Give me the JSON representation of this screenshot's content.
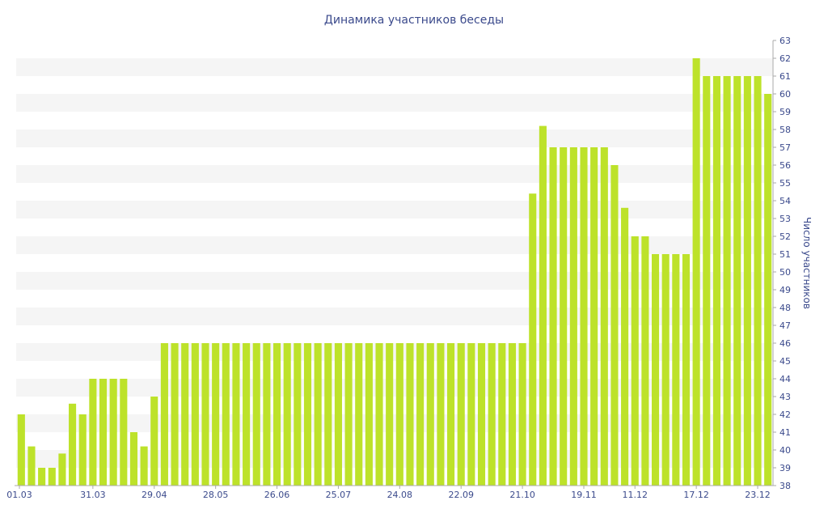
{
  "chart_data": {
    "type": "bar",
    "title": "Динамика участников беседы",
    "xlabel": "",
    "ylabel": "Число участников",
    "ylim": [
      38,
      63
    ],
    "y_ticks": [
      38,
      39,
      40,
      41,
      42,
      43,
      44,
      45,
      46,
      47,
      48,
      49,
      50,
      51,
      52,
      53,
      54,
      55,
      56,
      57,
      58,
      59,
      60,
      61,
      62,
      63
    ],
    "y_axis_position": "right",
    "x_tick_labels": [
      "01.03",
      "31.03",
      "29.04",
      "28.05",
      "26.06",
      "25.07",
      "24.08",
      "22.09",
      "21.10",
      "19.11",
      "11.12",
      "17.12",
      "23.12"
    ],
    "x_tick_indices": [
      0,
      7,
      13,
      19,
      25,
      31,
      37,
      43,
      49,
      55,
      60,
      66,
      72
    ],
    "values": [
      42,
      40.2,
      39,
      39,
      39.8,
      42.6,
      42,
      44,
      44,
      44,
      44,
      41,
      40.2,
      43,
      46,
      46,
      46,
      46,
      46,
      46,
      46,
      46,
      46,
      46,
      46,
      46,
      46,
      46,
      46,
      46,
      46,
      46,
      46,
      46,
      46,
      46,
      46,
      46,
      46,
      46,
      46,
      46,
      46,
      46,
      46,
      46,
      46,
      46,
      46,
      46,
      54.4,
      58.2,
      57,
      57,
      57,
      57,
      57,
      57,
      56,
      53.6,
      52,
      52,
      51,
      51,
      51,
      51,
      62,
      61,
      61,
      61,
      61,
      61,
      61,
      60
    ],
    "bar_color": "#bde22a",
    "band_color": "#f5f5f5",
    "text_color": "#3b4a8c",
    "grid": "alternating-bands"
  }
}
